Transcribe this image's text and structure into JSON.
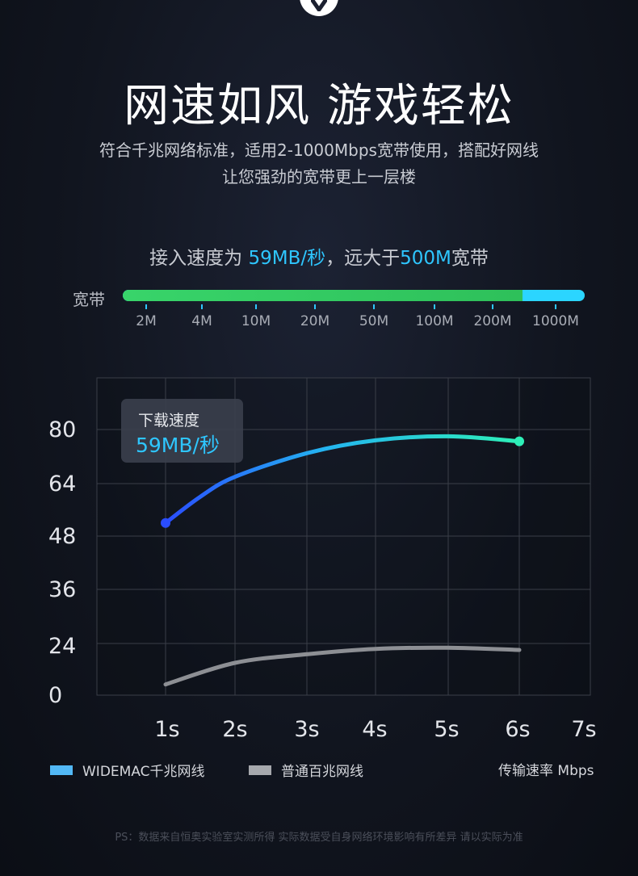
{
  "title": "网速如风 游戏轻松",
  "subtitle_line1": "符合千兆网络标准，适用2-1000Mbps宽带使用，搭配好网线",
  "subtitle_line2": "让您强劲的宽带更上一层楼",
  "speed": {
    "prefix": "接入速度为 ",
    "value": "59MB/秒",
    "middle": "，远大于",
    "compare": "500M",
    "suffix": "宽带"
  },
  "bandwidth": {
    "label": "宽带",
    "fill_fraction": 0.865,
    "ticks": [
      "2M",
      "4M",
      "10M",
      "20M",
      "50M",
      "100M",
      "200M",
      "1000M"
    ]
  },
  "colors": {
    "accent": "#2ec6ff",
    "bar_green": "#38d46a",
    "series_start": "#2a4dff",
    "series_end": "#2ef0b8",
    "series2": "#8d8f94"
  },
  "chart_data": {
    "type": "line",
    "x_tick_labels": [
      "1s",
      "2s",
      "3s",
      "4s",
      "5s",
      "6s",
      "7s"
    ],
    "y_tick_labels": [
      "80",
      "64",
      "48",
      "36",
      "24",
      "0"
    ],
    "grid": true,
    "series": [
      {
        "name": "WIDEMAC千兆网线",
        "points": [
          [
            1,
            52
          ],
          [
            1.5,
            60
          ],
          [
            2,
            66
          ],
          [
            3,
            73
          ],
          [
            4,
            76.8
          ],
          [
            5,
            78
          ],
          [
            6,
            76.5
          ]
        ]
      },
      {
        "name": "普通百兆网线",
        "points": [
          [
            1,
            5
          ],
          [
            2,
            15
          ],
          [
            3,
            19
          ],
          [
            4,
            21.5
          ],
          [
            5,
            22
          ],
          [
            6,
            21
          ]
        ]
      }
    ],
    "callout": {
      "label": "下载速度",
      "value": "59MB/秒"
    },
    "unit_label": "传输速率 Mbps"
  },
  "legend": [
    {
      "label": "WIDEMAC千兆网线",
      "color": "#52b8f5"
    },
    {
      "label": "普通百兆网线",
      "color": "#a6a8ad"
    }
  ],
  "footnote": "PS：数据来自恒奥实验室实测所得 实际数据受自身网络环境影响有所差异 请以实际为准"
}
